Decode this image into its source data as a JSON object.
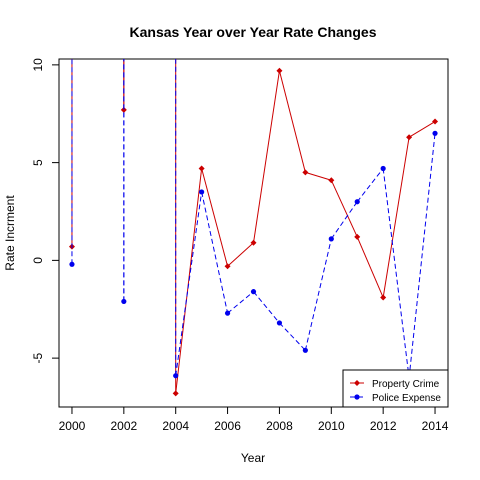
{
  "chart_data": {
    "type": "line",
    "title": "Kansas Year over Year Rate Changes",
    "xlabel": "Year",
    "ylabel": "Rate Incrment",
    "xlim": [
      1999.5,
      2014.5
    ],
    "ylim": [
      -7.5,
      10.3
    ],
    "x_ticks": [
      2000,
      2002,
      2004,
      2006,
      2008,
      2010,
      2012,
      2014
    ],
    "y_ticks": [
      -5,
      0,
      5,
      10
    ],
    "legend_position": "bottom-right",
    "grid": false,
    "series": [
      {
        "name": "Property Crime",
        "color": "#cc0000",
        "line_style": "solid",
        "marker": "diamond",
        "x": [
          2000,
          2001,
          2002,
          2003,
          2004,
          2005,
          2006,
          2007,
          2008,
          2009,
          2010,
          2011,
          2012,
          2013,
          2014
        ],
        "y": [
          0.7,
          null,
          7.7,
          null,
          -6.8,
          4.7,
          -0.3,
          0.9,
          9.7,
          4.5,
          4.1,
          1.2,
          -1.9,
          6.3,
          7.1
        ]
      },
      {
        "name": "Police Expense",
        "color": "#0000ee",
        "line_style": "dashed",
        "marker": "circle",
        "x": [
          2000,
          2001,
          2002,
          2003,
          2004,
          2005,
          2006,
          2007,
          2008,
          2009,
          2010,
          2011,
          2012,
          2013,
          2014
        ],
        "y": [
          -0.2,
          null,
          -2.1,
          null,
          -5.9,
          3.5,
          -2.7,
          -1.6,
          -3.2,
          -4.6,
          1.1,
          3.0,
          4.7,
          -6.0,
          6.5
        ]
      }
    ]
  }
}
